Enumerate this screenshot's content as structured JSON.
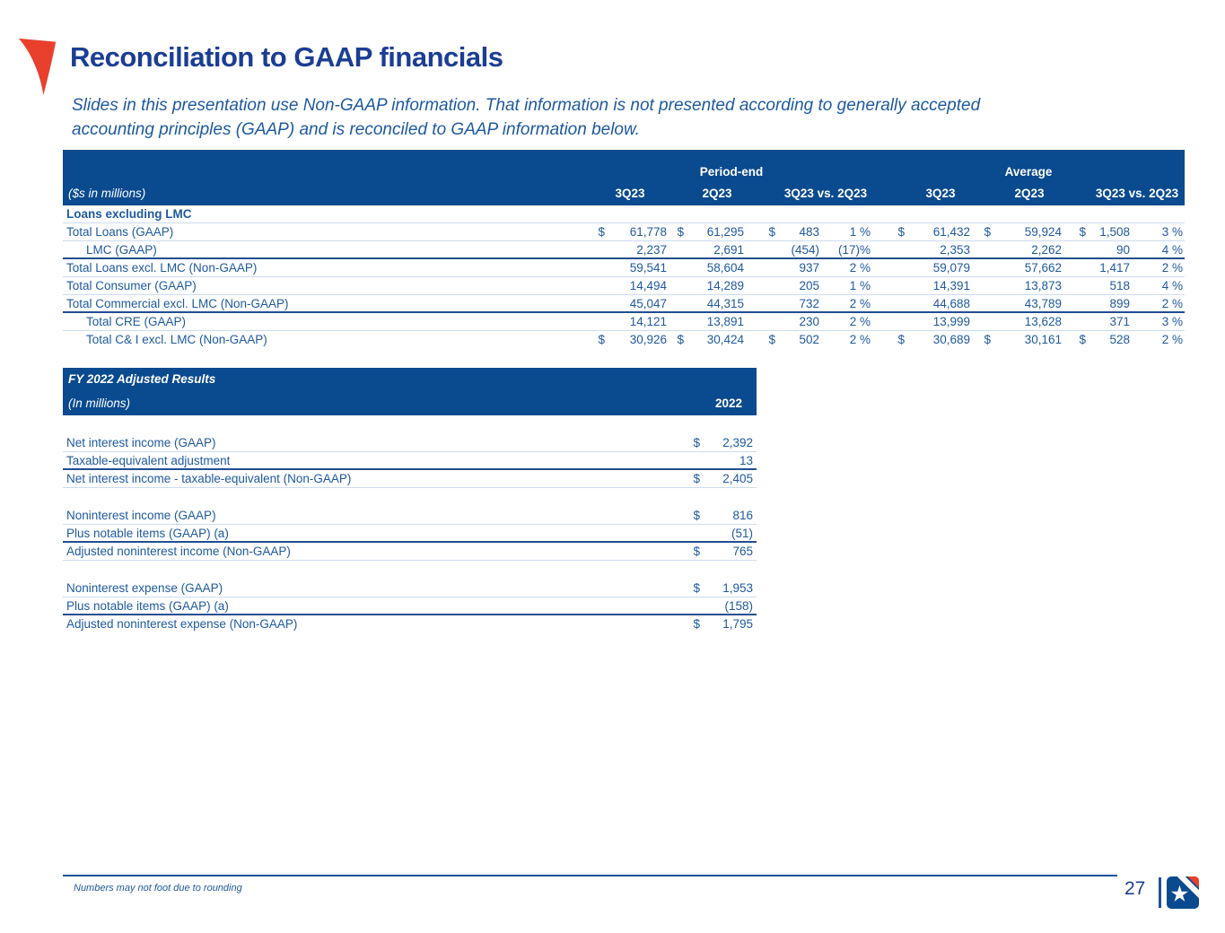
{
  "slide": {
    "title": "Reconciliation to GAAP financials",
    "subtitle_line1": "Slides in this presentation use Non-GAAP information. That information is not presented according to generally accepted",
    "subtitle_line2": "accounting principles (GAAP) and is reconciled to GAAP information below.",
    "footnote": "Numbers may not foot due to rounding",
    "page_number": "27"
  },
  "colors": {
    "header_bg": "#0a4a8f",
    "text_blue": "#1e5aa0",
    "title_blue": "#1b3e94",
    "accent_red": "#e8402d",
    "rule_strong": "#1f4e91",
    "rule_faint": "#cddcee"
  },
  "loans_table": {
    "units_label": "($s in millions)",
    "group_headers": {
      "period_end": "Period-end",
      "average": "Average"
    },
    "col_headers": [
      "3Q23",
      "2Q23",
      "3Q23 vs. 2Q23",
      "3Q23",
      "2Q23",
      "3Q23 vs. 2Q23"
    ],
    "rows": [
      {
        "label": "Loans excluding LMC",
        "style": "section",
        "indent": false,
        "border": "faint",
        "cells": [
          "",
          "",
          "",
          "",
          "",
          "",
          "",
          "",
          "",
          "",
          "",
          "",
          "",
          ""
        ]
      },
      {
        "label": "Total Loans (GAAP)",
        "style": "normal",
        "indent": false,
        "border": "faint",
        "cells": [
          "$",
          "61,778",
          "$",
          "61,295",
          "$",
          "483",
          "1 %",
          "$",
          "61,432",
          "$",
          "59,924",
          "$",
          "1,508",
          "3 %"
        ]
      },
      {
        "label": "LMC (GAAP)",
        "style": "normal",
        "indent": true,
        "border": "strong",
        "cells": [
          "",
          "2,237",
          "",
          "2,691",
          "",
          "(454)",
          "(17)%",
          "",
          "2,353",
          "",
          "2,262",
          "",
          "90",
          "4 %"
        ]
      },
      {
        "label": "Total Loans excl. LMC (Non-GAAP)",
        "style": "normal",
        "indent": false,
        "border": "faint",
        "cells": [
          "",
          "59,541",
          "",
          "58,604",
          "",
          "937",
          "2 %",
          "",
          "59,079",
          "",
          "57,662",
          "",
          "1,417",
          "2 %"
        ]
      },
      {
        "label": "Total Consumer (GAAP)",
        "style": "normal",
        "indent": false,
        "border": "faint",
        "cells": [
          "",
          "14,494",
          "",
          "14,289",
          "",
          "205",
          "1 %",
          "",
          "14,391",
          "",
          "13,873",
          "",
          "518",
          "4 %"
        ]
      },
      {
        "label": "Total Commercial excl. LMC (Non-GAAP)",
        "style": "normal",
        "indent": false,
        "border": "strong",
        "cells": [
          "",
          "45,047",
          "",
          "44,315",
          "",
          "732",
          "2 %",
          "",
          "44,688",
          "",
          "43,789",
          "",
          "899",
          "2 %"
        ]
      },
      {
        "label": "Total CRE (GAAP)",
        "style": "normal",
        "indent": true,
        "border": "faint",
        "cells": [
          "",
          "14,121",
          "",
          "13,891",
          "",
          "230",
          "2 %",
          "",
          "13,999",
          "",
          "13,628",
          "",
          "371",
          "3 %"
        ]
      },
      {
        "label": "Total C& I excl. LMC (Non-GAAP)",
        "style": "normal",
        "indent": true,
        "border": "none",
        "cells": [
          "$",
          "30,926",
          "$",
          "30,424",
          "$",
          "502",
          "2 %",
          "$",
          "30,689",
          "$",
          "30,161",
          "$",
          "528",
          "2 %"
        ]
      }
    ]
  },
  "fy_table": {
    "title": "FY 2022 Adjusted Results",
    "units_label": "(In millions)",
    "col_header": "2022",
    "rows": [
      {
        "label": "Net interest income (GAAP)",
        "dollar": "$",
        "value": "2,392",
        "border": "faint",
        "spacer_before": false
      },
      {
        "label": "Taxable-equivalent adjustment",
        "dollar": "",
        "value": "13",
        "border": "strong",
        "spacer_before": false
      },
      {
        "label": "Net interest income - taxable-equivalent (Non-GAAP)",
        "dollar": "$",
        "value": "2,405",
        "border": "faint",
        "spacer_before": false
      },
      {
        "label": "Noninterest income (GAAP)",
        "dollar": "$",
        "value": "816",
        "border": "faint",
        "spacer_before": true
      },
      {
        "label": "Plus notable items (GAAP) (a)",
        "dollar": "",
        "value": "(51)",
        "border": "strong",
        "spacer_before": false
      },
      {
        "label": "Adjusted noninterest income (Non-GAAP)",
        "dollar": "$",
        "value": "765",
        "border": "faint",
        "spacer_before": false
      },
      {
        "label": "Noninterest expense (GAAP)",
        "dollar": "$",
        "value": "1,953",
        "border": "faint",
        "spacer_before": true
      },
      {
        "label": "Plus notable items (GAAP) (a)",
        "dollar": "",
        "value": "(158)",
        "border": "strong",
        "spacer_before": false
      },
      {
        "label": "Adjusted noninterest expense (Non-GAAP)",
        "dollar": "$",
        "value": "1,795",
        "border": "none",
        "spacer_before": false
      }
    ]
  }
}
